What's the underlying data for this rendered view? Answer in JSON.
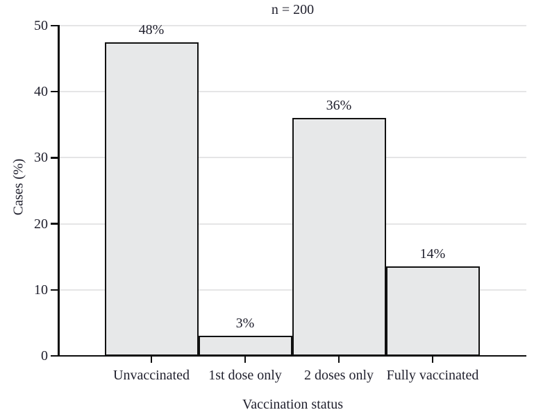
{
  "title": "n = 200",
  "colors": {
    "background": "#ffffff",
    "text": "#21212e",
    "axis": "#0d0d0d",
    "bar_fill": "#e7e8e9",
    "bar_border": "#111111",
    "gridline": "#e5e5e6"
  },
  "chart_data": {
    "type": "bar",
    "title": "n = 200",
    "xlabel": "Vaccination status",
    "ylabel": "Cases (%)",
    "categories": [
      "Unvaccinated",
      "1st dose only",
      "2 doses only",
      "Fully vaccinated"
    ],
    "values": [
      47.5,
      3,
      36,
      13.5
    ],
    "bar_labels": [
      "48%",
      "3%",
      "36%",
      "14%"
    ],
    "ylim": [
      0,
      50
    ],
    "yticks": [
      0,
      10,
      20,
      30,
      40,
      50
    ],
    "grid": "horizontal",
    "legend": "none",
    "bar_style": "adjacent-full-width"
  }
}
